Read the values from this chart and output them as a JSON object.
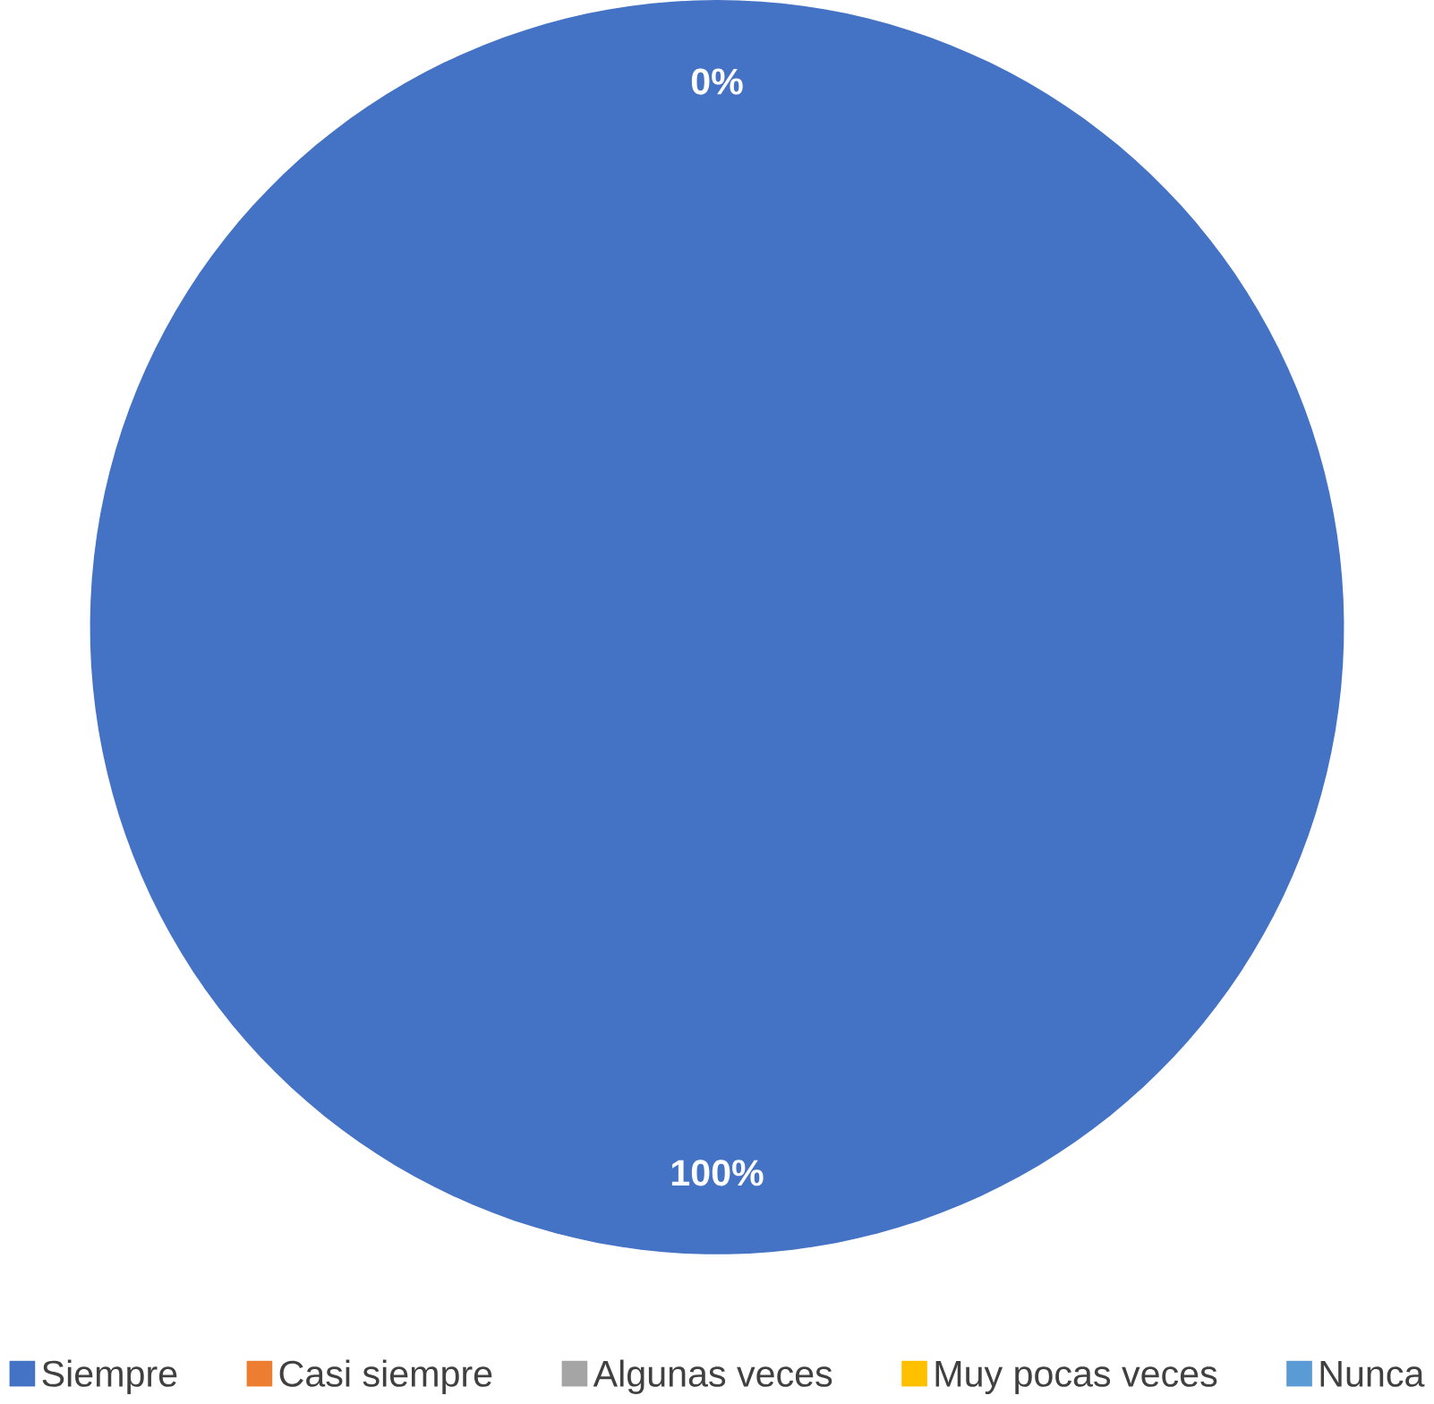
{
  "chart_data": {
    "type": "pie",
    "categories": [
      "Siempre",
      "Casi siempre",
      "Algunas veces",
      "Muy pocas veces",
      "Nunca"
    ],
    "values": [
      100,
      0,
      0,
      0,
      0
    ],
    "colors": [
      "#4472c4",
      "#ed7d31",
      "#a5a5a5",
      "#ffc000",
      "#5b9bd5"
    ],
    "value_labels": [
      "100%",
      "0%",
      null,
      null,
      null
    ],
    "legend": "bottom"
  }
}
